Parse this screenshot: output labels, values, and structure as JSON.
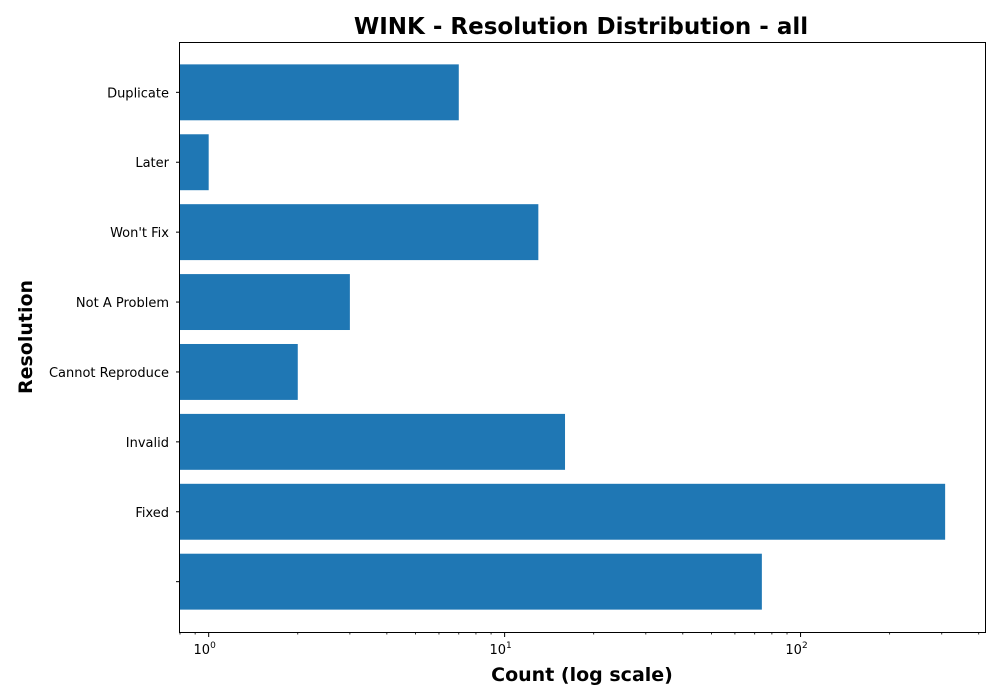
{
  "chart_data": {
    "type": "bar",
    "orientation": "horizontal",
    "title": "WINK - Resolution Distribution - all",
    "xlabel": "Count (log scale)",
    "ylabel": "Resolution",
    "xscale": "log",
    "xlim": [
      0.8,
      420
    ],
    "xticks": [
      {
        "value": 1,
        "base": "10",
        "exp": "0"
      },
      {
        "value": 10,
        "base": "10",
        "exp": "1"
      },
      {
        "value": 100,
        "base": "10",
        "exp": "2"
      }
    ],
    "categories": [
      "",
      "Fixed",
      "Invalid",
      "Cannot Reproduce",
      "Not A Problem",
      "Won't Fix",
      "Later",
      "Duplicate"
    ],
    "values": [
      74,
      308,
      16,
      2,
      3,
      13,
      1,
      7
    ],
    "bar_color": "#1f77b4",
    "grid": false,
    "legend": "none"
  }
}
